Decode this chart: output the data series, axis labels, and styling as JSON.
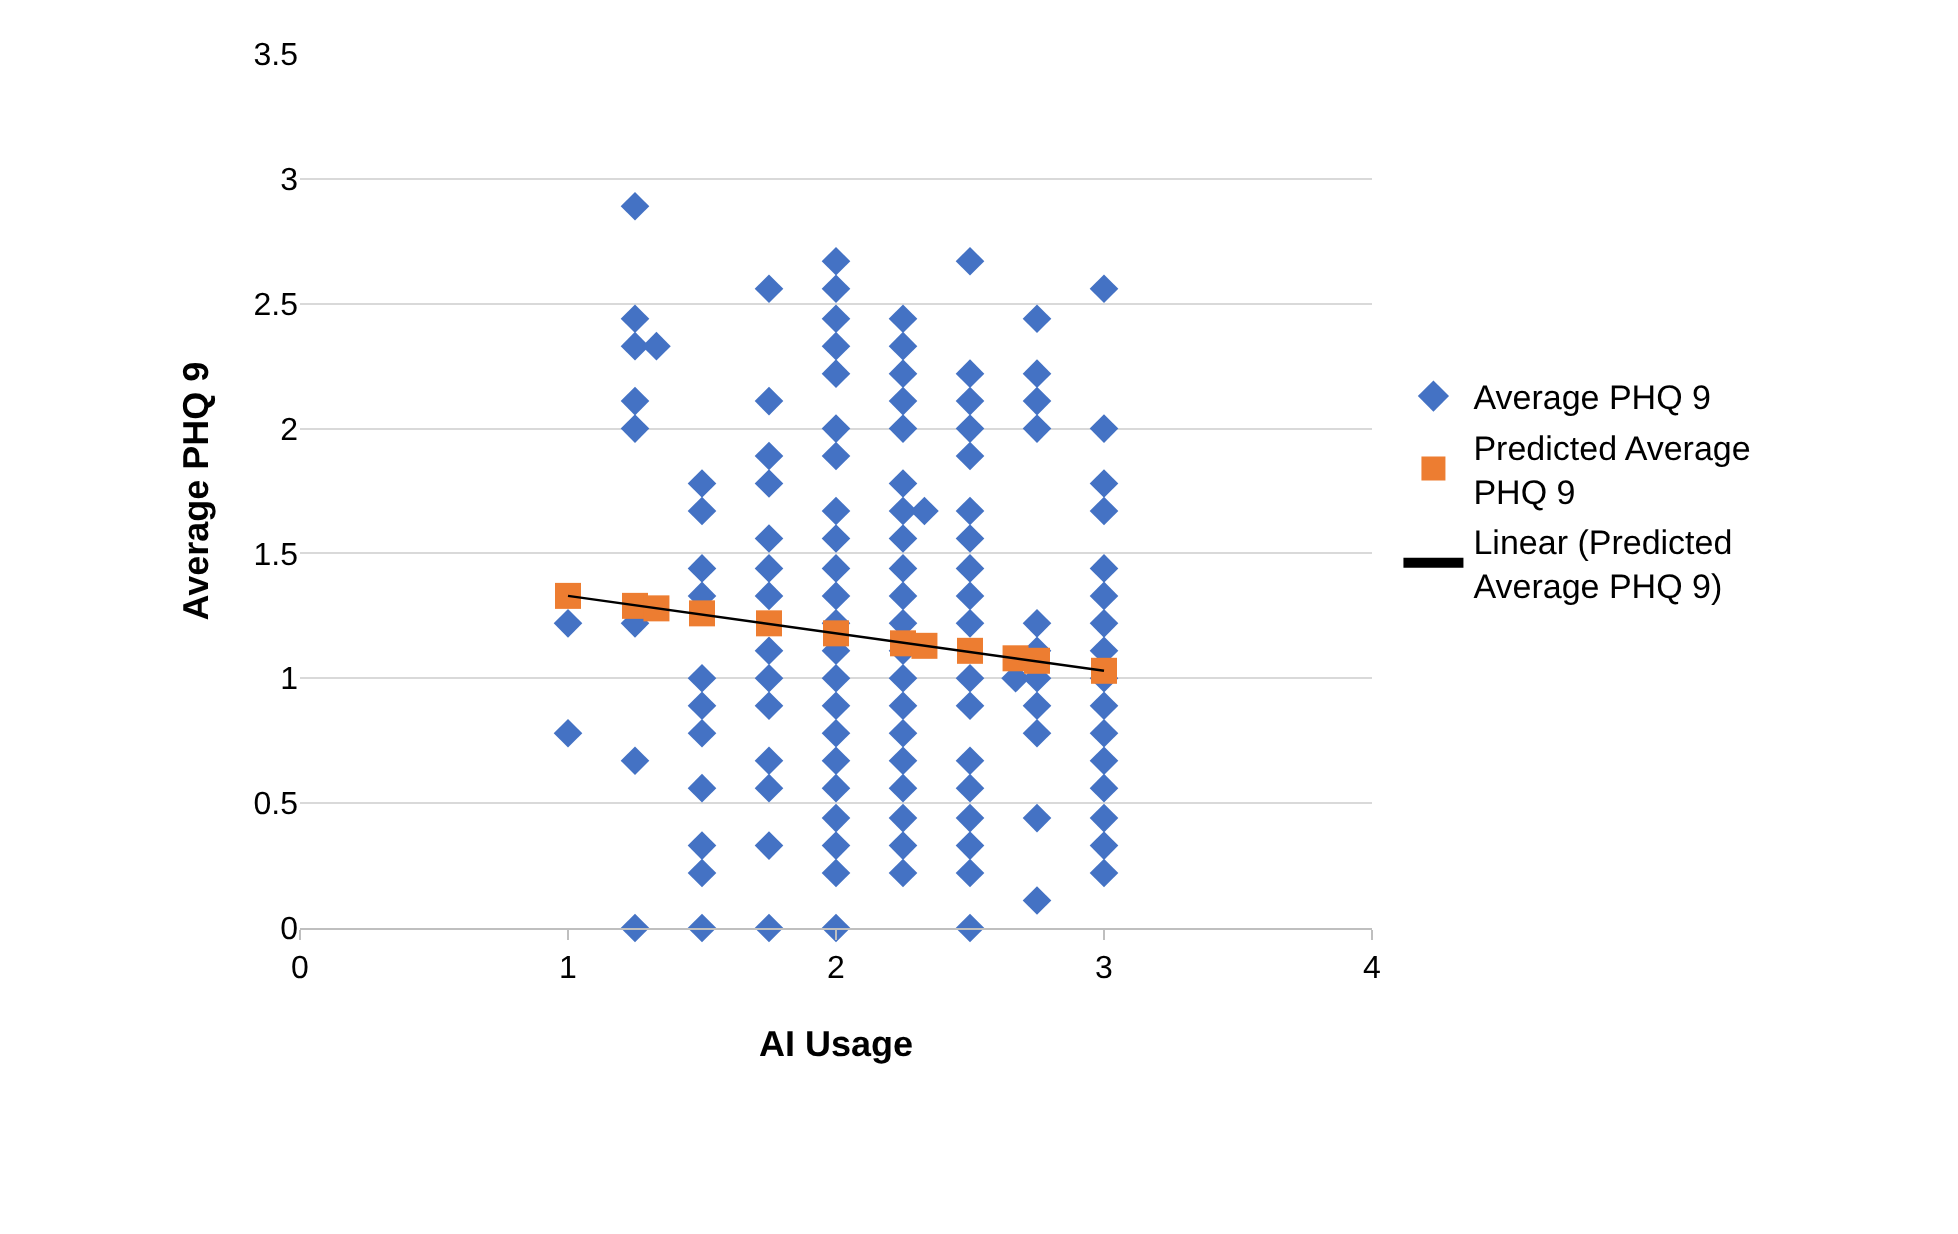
{
  "chart_data": {
    "type": "scatter",
    "xlabel": "AI Usage",
    "ylabel": "Average PHQ 9",
    "xlim": [
      0,
      4
    ],
    "xticks": [
      0,
      1,
      2,
      3,
      4
    ],
    "ylim": [
      0,
      3.5
    ],
    "yticks": [
      0,
      0.5,
      1,
      1.5,
      2,
      2.5,
      3,
      3.5
    ],
    "grid": "y",
    "legend": "right",
    "series": [
      {
        "name": "Average PHQ 9",
        "color": "#4472c4",
        "marker": "diamond",
        "x": [
          1,
          1,
          1.25,
          1.25,
          1.25,
          1.25,
          1.25,
          1.25,
          1.25,
          1.25,
          1.33,
          1.5,
          1.5,
          1.5,
          1.5,
          1.5,
          1.5,
          1.5,
          1.5,
          1.5,
          1.5,
          1.5,
          1.75,
          1.75,
          1.75,
          1.75,
          1.75,
          1.75,
          1.75,
          1.75,
          1.75,
          1.75,
          1.75,
          1.75,
          1.75,
          1.75,
          2,
          2,
          2,
          2,
          2,
          2,
          2,
          2,
          2,
          2,
          2,
          2,
          2,
          2,
          2,
          2,
          2,
          2,
          2,
          2,
          2,
          2,
          2.25,
          2.25,
          2.25,
          2.25,
          2.25,
          2.25,
          2.25,
          2.25,
          2.25,
          2.25,
          2.25,
          2.25,
          2.25,
          2.25,
          2.25,
          2.25,
          2.25,
          2.25,
          2.25,
          2.25,
          2.33,
          2.5,
          2.5,
          2.5,
          2.5,
          2.5,
          2.5,
          2.5,
          2.5,
          2.5,
          2.5,
          2.5,
          2.5,
          2.5,
          2.5,
          2.5,
          2.5,
          2.5,
          2.5,
          2.67,
          2.75,
          2.75,
          2.75,
          2.75,
          2.75,
          2.75,
          2.75,
          2.75,
          2.75,
          2.75,
          2.75,
          3,
          3,
          3,
          3,
          3,
          3,
          3,
          3,
          3,
          3,
          3,
          3,
          3,
          3,
          3,
          3
        ],
        "values": [
          1.22,
          0.78,
          2.89,
          2.44,
          2.33,
          2.11,
          2,
          1.22,
          0.67,
          0,
          2.33,
          1.78,
          1.67,
          1.44,
          1.33,
          1,
          0.89,
          0.78,
          0.56,
          0.33,
          0.22,
          0,
          2.56,
          2.11,
          1.89,
          1.78,
          1.56,
          1.44,
          1.33,
          1.11,
          1,
          0.89,
          0.67,
          0.56,
          0.33,
          0,
          2.67,
          2.56,
          2.44,
          2.33,
          2.22,
          2,
          1.89,
          1.67,
          1.56,
          1.44,
          1.33,
          1.22,
          1.11,
          1,
          0.89,
          0.78,
          0.67,
          0.56,
          0.44,
          0.33,
          0.22,
          0,
          2.44,
          2.33,
          2.22,
          2.11,
          2,
          1.78,
          1.67,
          1.56,
          1.44,
          1.33,
          1.22,
          1.11,
          1,
          0.89,
          0.78,
          0.67,
          0.56,
          0.44,
          0.33,
          0.22,
          1.67,
          2.67,
          2.22,
          2.11,
          2,
          1.89,
          1.67,
          1.56,
          1.44,
          1.33,
          1.22,
          1,
          0.89,
          0.67,
          0.56,
          0.44,
          0.33,
          0.22,
          0,
          1,
          2.44,
          2.22,
          2.11,
          2,
          1.22,
          1.11,
          1,
          0.89,
          0.78,
          0.44,
          0.11,
          2.56,
          2,
          1.78,
          1.67,
          1.44,
          1.33,
          1.22,
          1.11,
          1,
          0.89,
          0.78,
          0.67,
          0.56,
          0.44,
          0.33,
          0.22
        ]
      },
      {
        "name": "Predicted Average PHQ 9",
        "color": "#ed7d31",
        "marker": "square",
        "x": [
          1,
          1.25,
          1.33,
          1.5,
          1.75,
          2,
          2.25,
          2.33,
          2.5,
          2.67,
          2.75,
          3
        ],
        "values": [
          1.33,
          1.29,
          1.28,
          1.26,
          1.22,
          1.18,
          1.14,
          1.13,
          1.11,
          1.08,
          1.07,
          1.03
        ]
      },
      {
        "name": "Linear (Predicted Average PHQ 9)",
        "type": "line",
        "color": "#000000",
        "marker": "none",
        "line_style": "solid",
        "x": [
          1,
          3
        ],
        "values": [
          1.33,
          1.03
        ]
      }
    ]
  }
}
